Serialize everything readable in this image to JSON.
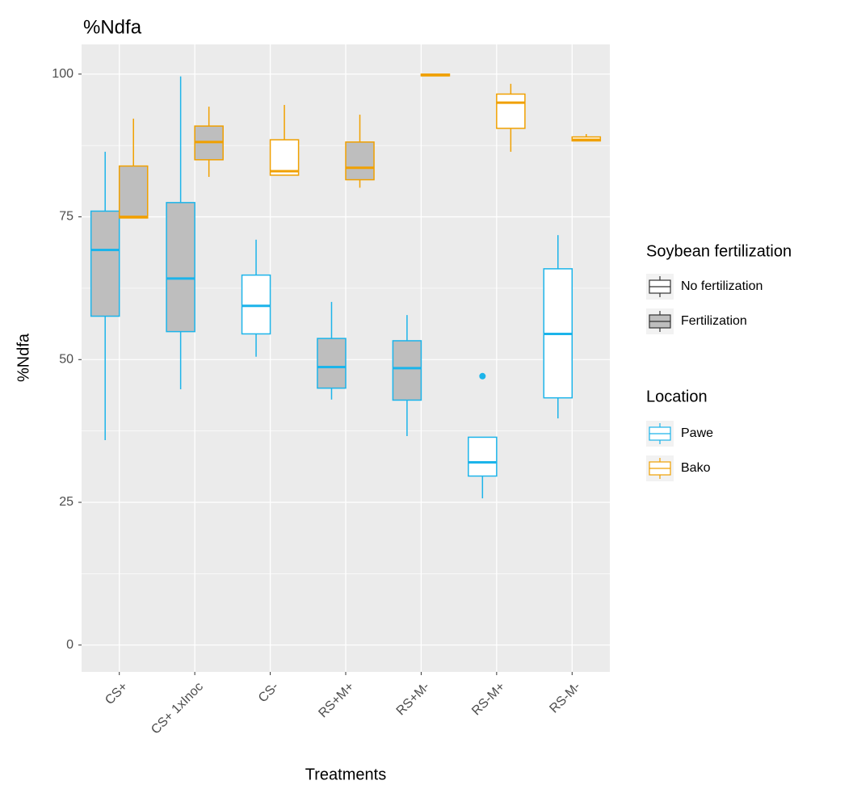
{
  "chart_data": {
    "type": "boxplot",
    "title": "%Ndfa",
    "x_label": "Treatments",
    "y_label": "%Ndfa",
    "categories": [
      "CS+",
      "CS+ 1xInoc",
      "CS-",
      "RS+M+",
      "RS+M-",
      "RS-M+",
      "RS-M-"
    ],
    "ylim": [
      -4.7,
      105.2
    ],
    "yticks": [
      0,
      25,
      50,
      75,
      100
    ],
    "grid": true,
    "fill_legend": {
      "title": "Soybean fertilization",
      "items": [
        {
          "name": "No fertilization",
          "fill": "#ffffff"
        },
        {
          "name": "Fertilization",
          "fill": "#bebebe"
        }
      ]
    },
    "color_legend_title": "Location",
    "series": [
      {
        "name": "Pawe",
        "color": "#1cb4ea",
        "boxes": [
          {
            "min": 35.9,
            "q1": 57.6,
            "median": 69.2,
            "q3": 76.0,
            "max": 86.4,
            "fertilized": true
          },
          {
            "min": 44.8,
            "q1": 54.9,
            "median": 64.2,
            "q3": 77.5,
            "max": 99.6,
            "fertilized": true
          },
          {
            "min": 50.5,
            "q1": 54.5,
            "median": 59.4,
            "q3": 64.8,
            "max": 71.0,
            "fertilized": false
          },
          {
            "min": 43.0,
            "q1": 45.0,
            "median": 48.7,
            "q3": 53.7,
            "max": 60.1,
            "fertilized": true
          },
          {
            "min": 36.6,
            "q1": 42.9,
            "median": 48.5,
            "q3": 53.3,
            "max": 57.8,
            "fertilized": true
          },
          {
            "min": 25.7,
            "q1": 29.6,
            "median": 32.0,
            "q3": 36.4,
            "max": 36.4,
            "fertilized": false,
            "outliers": [
              47.1
            ]
          },
          {
            "min": 39.7,
            "q1": 43.3,
            "median": 54.5,
            "q3": 65.9,
            "max": 71.8,
            "fertilized": false
          }
        ]
      },
      {
        "name": "Bako",
        "color": "#f0a000",
        "boxes": [
          {
            "min": 74.8,
            "q1": 74.8,
            "median": 75.0,
            "q3": 83.9,
            "max": 92.2,
            "fertilized": true
          },
          {
            "min": 82.0,
            "q1": 85.0,
            "median": 88.1,
            "q3": 90.9,
            "max": 94.3,
            "fertilized": true
          },
          {
            "min": 82.3,
            "q1": 82.3,
            "median": 83.0,
            "q3": 88.5,
            "max": 94.6,
            "fertilized": false
          },
          {
            "min": 80.1,
            "q1": 81.5,
            "median": 83.6,
            "q3": 88.1,
            "max": 92.9,
            "fertilized": true
          },
          {
            "min": 99.7,
            "q1": 99.7,
            "median": 99.8,
            "q3": 100.0,
            "max": 100.0,
            "fertilized": false
          },
          {
            "min": 86.4,
            "q1": 90.5,
            "median": 95.0,
            "q3": 96.5,
            "max": 98.3,
            "fertilized": false
          },
          {
            "min": 88.3,
            "q1": 88.3,
            "median": 88.5,
            "q3": 89.0,
            "max": 89.5,
            "fertilized": false
          }
        ]
      }
    ]
  }
}
